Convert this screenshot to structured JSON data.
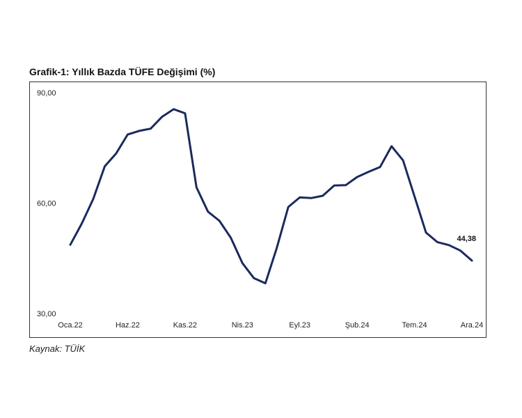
{
  "chart_data": {
    "type": "line",
    "title": "Grafik-1: Yıllık Bazda TÜFE Değişimi (%)",
    "source": "Kaynak: TÜİK",
    "xlabel": "",
    "ylabel": "",
    "ylim": [
      30,
      90
    ],
    "y_ticks": [
      "30,00",
      "60,00",
      "90,00"
    ],
    "x_ticks": [
      "Oca.22",
      "Haz.22",
      "Kas.22",
      "Nis.23",
      "Eyl.23",
      "Şub.24",
      "Tem.24",
      "Ara.24"
    ],
    "grid": false,
    "legend": false,
    "line_color": "#1b2a5c",
    "x": [
      "Oca.22",
      "Şub.22",
      "Mar.22",
      "Nis.22",
      "May.22",
      "Haz.22",
      "Tem.22",
      "Ağu.22",
      "Eyl.22",
      "Eki.22",
      "Kas.22",
      "Ara.22",
      "Oca.23",
      "Şub.23",
      "Mar.23",
      "Nis.23",
      "May.23",
      "Haz.23",
      "Tem.23",
      "Ağu.23",
      "Eyl.23",
      "Eki.23",
      "Kas.23",
      "Ara.23",
      "Oca.24",
      "Şub.24",
      "Mar.24",
      "Nis.24",
      "May.24",
      "Haz.24",
      "Tem.24",
      "Ağu.24",
      "Eyl.24",
      "Eki.24",
      "Kas.24",
      "Ara.24"
    ],
    "series": [
      {
        "values": [
          48.69,
          54.44,
          61.14,
          69.97,
          73.5,
          78.62,
          79.6,
          80.21,
          83.45,
          85.51,
          84.39,
          64.27,
          57.68,
          55.18,
          50.51,
          43.68,
          39.59,
          38.21,
          47.83,
          58.94,
          61.53,
          61.36,
          61.98,
          64.77,
          64.86,
          67.07,
          68.5,
          69.8,
          75.45,
          71.6,
          61.78,
          51.97,
          49.38,
          48.58,
          47.09,
          44.38
        ]
      }
    ],
    "annotations": [
      {
        "text": "44,38",
        "series": 0,
        "index": 35
      }
    ]
  }
}
